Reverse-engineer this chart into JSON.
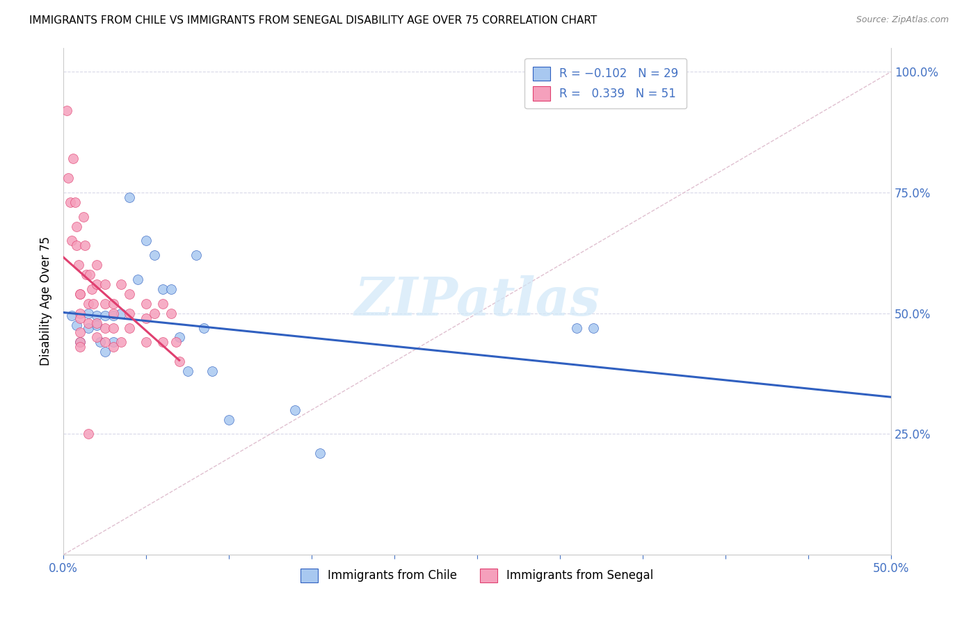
{
  "title": "IMMIGRANTS FROM CHILE VS IMMIGRANTS FROM SENEGAL DISABILITY AGE OVER 75 CORRELATION CHART",
  "source": "Source: ZipAtlas.com",
  "ylabel": "Disability Age Over 75",
  "ylabel_right_ticks": [
    "100.0%",
    "75.0%",
    "50.0%",
    "25.0%"
  ],
  "ylabel_right_vals": [
    1.0,
    0.75,
    0.5,
    0.25
  ],
  "xlim": [
    0.0,
    0.5
  ],
  "ylim": [
    0.0,
    1.05
  ],
  "legend_label_chile": "Immigrants from Chile",
  "legend_label_senegal": "Immigrants from Senegal",
  "chile_color": "#a8c8f0",
  "senegal_color": "#f5a0bc",
  "trendline_chile_color": "#3060c0",
  "trendline_senegal_color": "#e04070",
  "diagonal_color": "#e0c0d0",
  "watermark_color": "#d0e8f8",
  "chile_x": [
    0.005,
    0.008,
    0.01,
    0.015,
    0.015,
    0.02,
    0.02,
    0.022,
    0.025,
    0.025,
    0.03,
    0.03,
    0.035,
    0.04,
    0.045,
    0.05,
    0.055,
    0.06,
    0.065,
    0.07,
    0.075,
    0.08,
    0.085,
    0.09,
    0.1,
    0.14,
    0.155,
    0.31,
    0.32
  ],
  "chile_y": [
    0.495,
    0.475,
    0.44,
    0.5,
    0.47,
    0.495,
    0.475,
    0.44,
    0.495,
    0.42,
    0.495,
    0.44,
    0.5,
    0.74,
    0.57,
    0.65,
    0.62,
    0.55,
    0.55,
    0.45,
    0.38,
    0.62,
    0.47,
    0.38,
    0.28,
    0.3,
    0.21,
    0.47,
    0.47
  ],
  "senegal_x": [
    0.002,
    0.003,
    0.004,
    0.005,
    0.006,
    0.007,
    0.008,
    0.008,
    0.009,
    0.01,
    0.01,
    0.01,
    0.01,
    0.01,
    0.01,
    0.01,
    0.012,
    0.013,
    0.014,
    0.015,
    0.015,
    0.015,
    0.016,
    0.017,
    0.018,
    0.02,
    0.02,
    0.02,
    0.02,
    0.025,
    0.025,
    0.025,
    0.025,
    0.03,
    0.03,
    0.03,
    0.03,
    0.035,
    0.035,
    0.04,
    0.04,
    0.04,
    0.05,
    0.05,
    0.05,
    0.055,
    0.06,
    0.06,
    0.065,
    0.068,
    0.07
  ],
  "senegal_y": [
    0.92,
    0.78,
    0.73,
    0.65,
    0.82,
    0.73,
    0.68,
    0.64,
    0.6,
    0.54,
    0.54,
    0.5,
    0.49,
    0.46,
    0.44,
    0.43,
    0.7,
    0.64,
    0.58,
    0.52,
    0.48,
    0.25,
    0.58,
    0.55,
    0.52,
    0.48,
    0.45,
    0.6,
    0.56,
    0.52,
    0.47,
    0.44,
    0.56,
    0.52,
    0.5,
    0.47,
    0.43,
    0.56,
    0.44,
    0.54,
    0.5,
    0.47,
    0.52,
    0.49,
    0.44,
    0.5,
    0.52,
    0.44,
    0.5,
    0.44,
    0.4
  ],
  "senegal_trendline_x": [
    0.0,
    0.07
  ],
  "chile_trendline_x": [
    0.0,
    0.5
  ]
}
